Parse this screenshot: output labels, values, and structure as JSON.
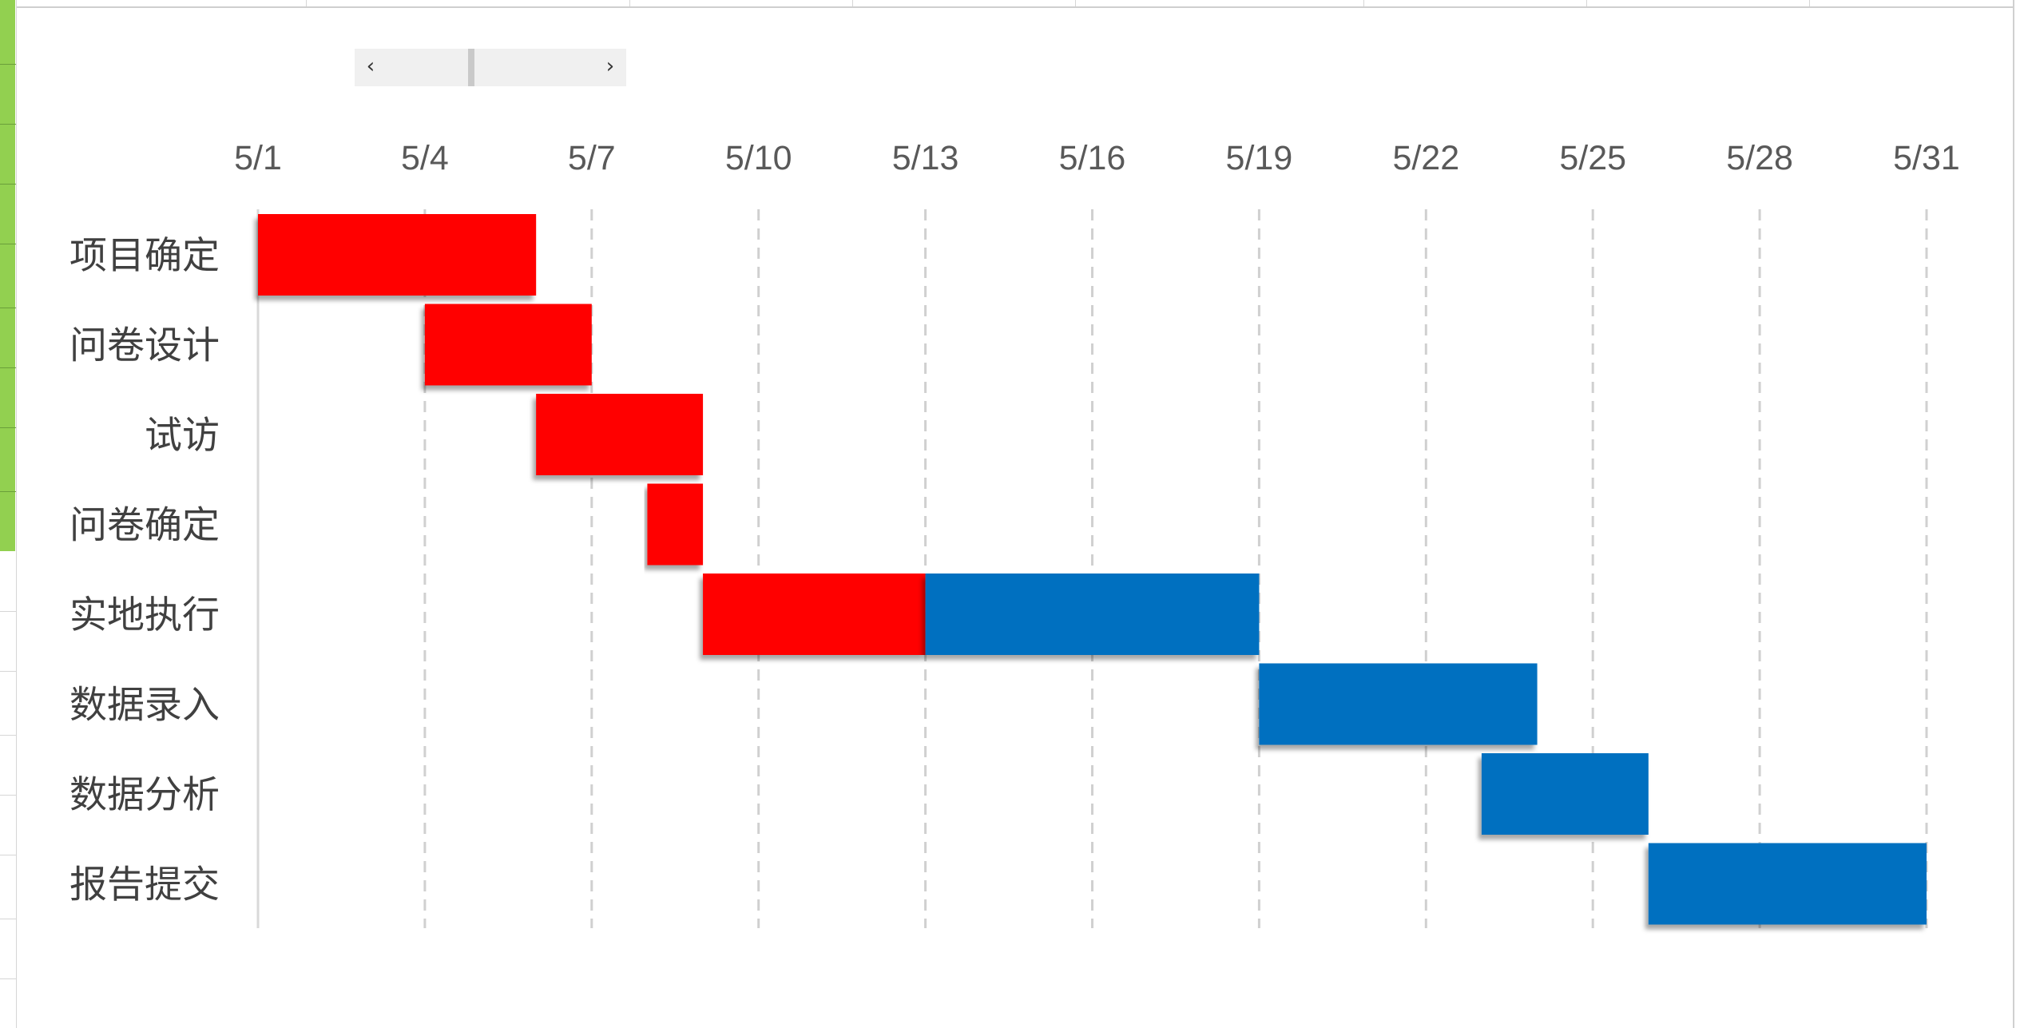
{
  "chart_data": {
    "type": "bar",
    "orientation": "horizontal",
    "stacked": true,
    "tasks": [
      "项目确定",
      "问卷设计",
      "试访",
      "问卷确定",
      "实地执行",
      "数据录入",
      "数据分析",
      "报告提交"
    ],
    "x_tick_labels": [
      "5/1",
      "5/4",
      "5/7",
      "5/10",
      "5/13",
      "5/16",
      "5/19",
      "5/22",
      "5/25",
      "5/28",
      "5/31"
    ],
    "xlim": [
      "5/1",
      "5/31"
    ],
    "x_axis_position": "top",
    "grid": "vertical dashed",
    "legend": "none",
    "series": [
      {
        "color": "#ff0000",
        "segments": [
          {
            "task": "项目确定",
            "start": "5/1",
            "end": "5/6"
          },
          {
            "task": "问卷设计",
            "start": "5/4",
            "end": "5/7"
          },
          {
            "task": "试访",
            "start": "5/6",
            "end": "5/9"
          },
          {
            "task": "问卷确定",
            "start": "5/8",
            "end": "5/9"
          },
          {
            "task": "实地执行",
            "start": "5/9",
            "end": "5/13"
          }
        ]
      },
      {
        "color": "#0070c0",
        "segments": [
          {
            "task": "实地执行",
            "start": "5/13",
            "end": "5/19"
          },
          {
            "task": "数据录入",
            "start": "5/19",
            "end": "5/24"
          },
          {
            "task": "数据分析",
            "start": "5/23",
            "end": "5/26"
          },
          {
            "task": "报告提交",
            "start": "5/26",
            "end": "5/31"
          }
        ]
      }
    ]
  },
  "scrollbar": {
    "left_arrow": "‹",
    "right_arrow": "›"
  }
}
